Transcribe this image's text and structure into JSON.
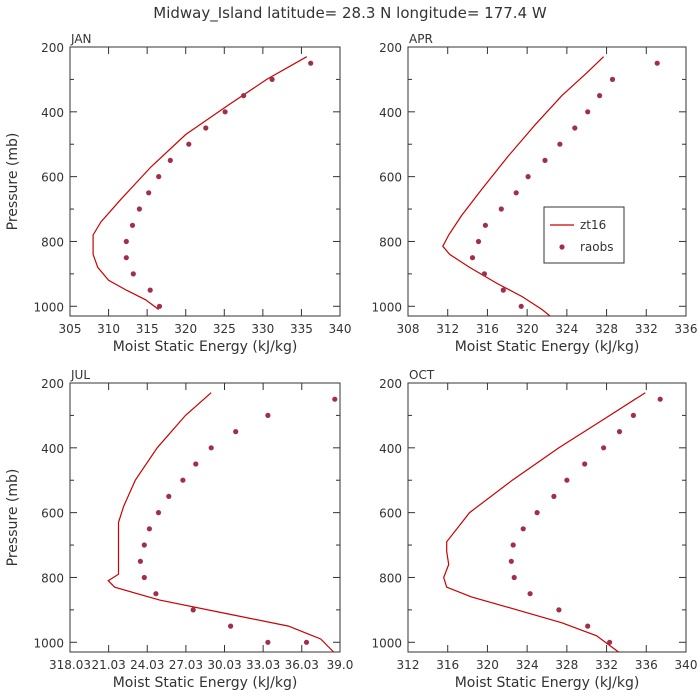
{
  "chart_data": {
    "type": "scatter",
    "title": "Midway_Island  latitude= 28.3 N longitude= 177.4 W",
    "ylabel": "Pressure (mb)",
    "xlabel": "Moist Static Energy (kJ/kg)",
    "legend": {
      "placement": "right",
      "entries": [
        "zt16",
        "raobs"
      ],
      "panel": "APR"
    },
    "ylim": [
      1030,
      200
    ],
    "yticks": [
      200,
      400,
      600,
      800,
      1000
    ],
    "panels": [
      {
        "label": "JAN",
        "xlim": [
          305,
          340
        ],
        "xticks": [
          305,
          310,
          315,
          320,
          325,
          330,
          335,
          340
        ],
        "xtick_labels": [
          "305",
          "310",
          "315",
          "320",
          "325",
          "330",
          "335",
          "340"
        ],
        "series": [
          {
            "name": "zt16",
            "type": "line",
            "x": [
              335.7,
              330.5,
              325.5,
              320.0,
              315.5,
              311.6,
              309.0,
              308.0,
              308.0,
              308.6,
              310.0,
              312.3,
              314.8,
              316.5
            ],
            "y": [
              230,
              300,
              380,
              470,
              570,
              670,
              740,
              780,
              840,
              880,
              920,
              950,
              980,
              1010
            ]
          },
          {
            "name": "raobs",
            "type": "scatter",
            "x": [
              336.2,
              331.2,
              327.5,
              325.1,
              322.6,
              320.4,
              318.0,
              316.5,
              315.2,
              314.0,
              313.1,
              312.3,
              312.3,
              313.2,
              315.4,
              316.6
            ],
            "y": [
              250,
              300,
              350,
              400,
              450,
              500,
              550,
              600,
              650,
              700,
              750,
              800,
              850,
              900,
              950,
              1000
            ]
          }
        ]
      },
      {
        "label": "APR",
        "xlim": [
          308,
          336
        ],
        "xticks": [
          308,
          312,
          316,
          320,
          324,
          328,
          332,
          336
        ],
        "xtick_labels": [
          "308",
          "312",
          "316",
          "320",
          "324",
          "328",
          "332",
          "336"
        ],
        "series": [
          {
            "name": "zt16",
            "type": "line",
            "x": [
              327.7,
              326.0,
              323.5,
              320.8,
              318.0,
              315.4,
              313.4,
              312.1,
              311.5,
              312.2,
              314.2,
              317.0,
              319.5,
              321.5,
              322.3
            ],
            "y": [
              230,
              280,
              350,
              440,
              540,
              640,
              720,
              780,
              815,
              840,
              880,
              930,
              970,
              1010,
              1030
            ]
          },
          {
            "name": "raobs",
            "type": "scatter",
            "x": [
              333.1,
              328.6,
              327.3,
              326.1,
              324.8,
              323.3,
              321.8,
              320.1,
              318.9,
              317.4,
              315.8,
              315.1,
              314.5,
              315.7,
              317.6,
              319.4
            ],
            "y": [
              250,
              300,
              350,
              400,
              450,
              500,
              550,
              600,
              650,
              700,
              750,
              800,
              850,
              900,
              950,
              1000
            ]
          }
        ]
      },
      {
        "label": "JUL",
        "xlim": [
          318.03,
          339.0
        ],
        "xticks": [
          318.03,
          321.03,
          324.03,
          327.03,
          330.03,
          333.03,
          336.03,
          339.0
        ],
        "xtick_labels": [
          "318.03",
          "21.03",
          "24.03",
          "27.03",
          "30.03",
          "33.03",
          "36.03",
          "39.0"
        ],
        "series": [
          {
            "name": "zt16",
            "type": "line",
            "x": [
              329.0,
              327.0,
              324.8,
              323.1,
              322.2,
              321.8,
              321.8,
              321.8,
              321.8,
              321.0,
              321.5,
              325.0,
              330.0,
              335.0,
              337.5,
              338.5
            ],
            "y": [
              230,
              300,
              400,
              500,
              580,
              630,
              680,
              740,
              790,
              810,
              830,
              870,
              910,
              950,
              990,
              1030
            ]
          },
          {
            "name": "raobs",
            "type": "scatter",
            "x": [
              338.6,
              333.4,
              330.9,
              329.0,
              327.8,
              326.8,
              325.7,
              324.9,
              324.2,
              323.8,
              323.5,
              323.8,
              324.7,
              327.6,
              330.5,
              333.4,
              336.4
            ],
            "y": [
              250,
              300,
              350,
              400,
              450,
              500,
              550,
              600,
              650,
              700,
              750,
              800,
              850,
              900,
              950,
              1000,
              1000
            ]
          }
        ]
      },
      {
        "label": "OCT",
        "xlim": [
          312,
          340
        ],
        "xticks": [
          312,
          316,
          320,
          324,
          328,
          332,
          336,
          340
        ],
        "xtick_labels": [
          "312",
          "316",
          "320",
          "324",
          "328",
          "332",
          "336",
          "340"
        ],
        "series": [
          {
            "name": "zt16",
            "type": "line",
            "x": [
              335.9,
              331.8,
              327.2,
              322.5,
              318.2,
              315.9,
              315.9,
              316.1,
              315.6,
              315.9,
              318.4,
              323.0,
              327.5,
              331.0,
              333.2
            ],
            "y": [
              230,
              310,
              400,
              500,
              600,
              690,
              720,
              760,
              800,
              830,
              860,
              900,
              940,
              980,
              1030
            ]
          },
          {
            "name": "raobs",
            "type": "scatter",
            "x": [
              337.4,
              334.7,
              333.3,
              331.7,
              329.8,
              328.0,
              326.7,
              325.0,
              323.6,
              322.6,
              322.4,
              322.7,
              324.3,
              327.2,
              330.1,
              332.3
            ],
            "y": [
              250,
              300,
              350,
              400,
              450,
              500,
              550,
              600,
              650,
              700,
              750,
              800,
              850,
              900,
              950,
              1000
            ]
          }
        ]
      }
    ]
  }
}
